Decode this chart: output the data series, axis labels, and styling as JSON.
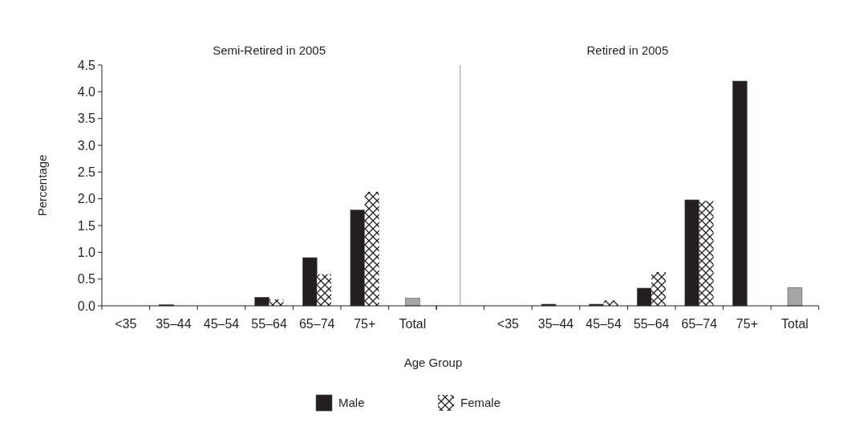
{
  "chart_data": [
    {
      "type": "bar",
      "title": "Semi-Retired in 2005",
      "xlabel": "Age Group",
      "ylabel": "Percentage",
      "categories": [
        "<35",
        "35–44",
        "45–54",
        "55–64",
        "65–74",
        "75+",
        "Total"
      ],
      "series": [
        {
          "name": "Male",
          "color": "#231f20",
          "values": [
            0,
            0.02,
            0,
            0.16,
            0.9,
            1.79,
            null
          ]
        },
        {
          "name": "Female",
          "color": "#ffffff",
          "values": [
            0,
            0,
            0,
            0.12,
            0.59,
            2.13,
            null
          ]
        },
        {
          "color": "#a6a6a6",
          "values": [
            null,
            null,
            null,
            null,
            null,
            null,
            0.14
          ]
        }
      ],
      "ylim": [
        0,
        4.5
      ],
      "yticks": [
        {
          "value": 0,
          "label": "0.0"
        },
        {
          "value": 0.5,
          "label": "0.5"
        },
        {
          "value": 1,
          "label": "1.0"
        },
        {
          "value": 1.5,
          "label": "1.5"
        },
        {
          "value": 2,
          "label": "2.0"
        },
        {
          "value": 2.5,
          "label": "2.5"
        },
        {
          "value": 3,
          "label": "3.0"
        },
        {
          "value": 3.5,
          "label": "3.5"
        },
        {
          "value": 4,
          "label": "4.0"
        },
        {
          "value": 4.5,
          "label": "4.5"
        }
      ],
      "legend": "bottom"
    },
    {
      "type": "bar",
      "title": "Retired in 2005",
      "categories": [
        "<35",
        "35–44",
        "45–54",
        "55–64",
        "65–74",
        "75+",
        "Total"
      ],
      "series": [
        {
          "name": "Male",
          "color": "#231f20",
          "values": [
            0,
            0.03,
            0.03,
            0.33,
            1.98,
            4.2,
            null
          ]
        },
        {
          "name": "Female",
          "color": "#ffffff",
          "values": [
            0,
            0,
            0.1,
            0.63,
            1.96,
            0,
            null
          ]
        },
        {
          "color": "#a6a6a6",
          "values": [
            null,
            null,
            null,
            null,
            null,
            null,
            0.34
          ]
        }
      ],
      "ylim": [
        0,
        4.5
      ],
      "tick_labels": "x"
    }
  ]
}
